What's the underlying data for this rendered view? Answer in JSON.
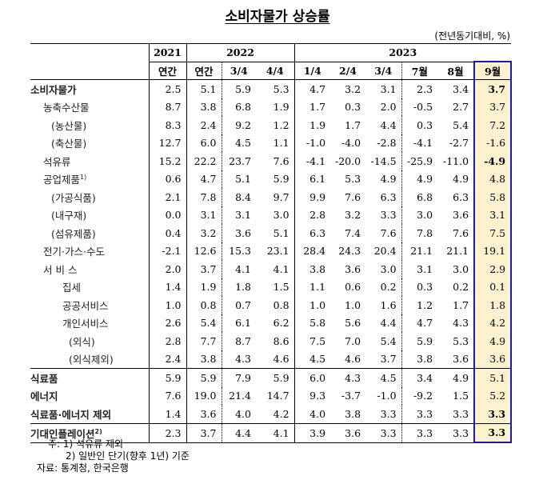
{
  "title": "소비자물가 상승률",
  "unit": "(전년동기대비, %)",
  "header": {
    "years": [
      {
        "label": "2021",
        "span": 1
      },
      {
        "label": "2022",
        "span": 3
      },
      {
        "label": "2023",
        "span": 6
      }
    ],
    "periods": [
      "연간",
      "연간",
      "3/4",
      "4/4",
      "1/4",
      "2/4",
      "3/4",
      "7월",
      "8월",
      "9월"
    ]
  },
  "rows": [
    {
      "label": "소비자물가",
      "indent": 0,
      "bold": true,
      "values": [
        "2.5",
        "5.1",
        "5.9",
        "5.3",
        "4.7",
        "3.2",
        "3.1",
        "2.3",
        "3.4",
        "3.7"
      ],
      "last_bold": true
    },
    {
      "label": "농축수산물",
      "indent": 1,
      "values": [
        "8.7",
        "3.8",
        "6.8",
        "1.9",
        "1.7",
        "0.3",
        "2.0",
        "-0.5",
        "2.7",
        "3.7"
      ]
    },
    {
      "label": "(농산물)",
      "indent": 2,
      "values": [
        "8.3",
        "2.4",
        "9.2",
        "1.2",
        "1.9",
        "1.7",
        "4.4",
        "0.3",
        "5.4",
        "7.2"
      ]
    },
    {
      "label": "(축산물)",
      "indent": 2,
      "values": [
        "12.7",
        "6.0",
        "4.5",
        "1.1",
        "-1.0",
        "-4.0",
        "-2.8",
        "-4.1",
        "-2.7",
        "-1.6"
      ]
    },
    {
      "label": "석유류",
      "indent": 1,
      "values": [
        "15.2",
        "22.2",
        "23.7",
        "7.6",
        "-4.1",
        "-20.0",
        "-14.5",
        "-25.9",
        "-11.0",
        "-4.9"
      ],
      "last_bold": true
    },
    {
      "label": "공업제품",
      "sup": "1)",
      "indent": 1,
      "values": [
        "0.6",
        "4.7",
        "5.1",
        "5.9",
        "6.1",
        "5.3",
        "4.9",
        "4.9",
        "4.9",
        "4.8"
      ]
    },
    {
      "label": "(가공식품)",
      "indent": 2,
      "values": [
        "2.1",
        "7.8",
        "8.4",
        "9.7",
        "9.9",
        "7.6",
        "6.3",
        "6.8",
        "6.3",
        "5.8"
      ]
    },
    {
      "label": "(내구재)",
      "indent": 2,
      "values": [
        "0.0",
        "3.1",
        "3.1",
        "3.0",
        "2.8",
        "3.2",
        "3.3",
        "3.0",
        "3.6",
        "3.1"
      ]
    },
    {
      "label": "(섬유제품)",
      "indent": 2,
      "values": [
        "0.4",
        "3.2",
        "3.6",
        "5.1",
        "6.3",
        "7.4",
        "7.6",
        "7.8",
        "7.6",
        "7.5"
      ]
    },
    {
      "label": "전기·가스·수도",
      "indent": 1,
      "values": [
        "-2.1",
        "12.6",
        "15.3",
        "23.1",
        "28.4",
        "24.3",
        "20.4",
        "21.1",
        "21.1",
        "19.1"
      ]
    },
    {
      "label": "서 비 스",
      "indent": 1,
      "values": [
        "2.0",
        "3.7",
        "4.1",
        "4.1",
        "3.8",
        "3.6",
        "3.0",
        "3.1",
        "3.0",
        "2.9"
      ]
    },
    {
      "label": "집세",
      "indent": 3,
      "values": [
        "1.4",
        "1.9",
        "1.8",
        "1.5",
        "1.1",
        "0.6",
        "0.2",
        "0.3",
        "0.2",
        "0.1"
      ]
    },
    {
      "label": "공공서비스",
      "indent": 3,
      "values": [
        "1.0",
        "0.8",
        "0.7",
        "0.8",
        "1.0",
        "1.0",
        "1.6",
        "1.2",
        "1.7",
        "1.8"
      ]
    },
    {
      "label": "개인서비스",
      "indent": 3,
      "values": [
        "2.6",
        "5.4",
        "6.1",
        "6.2",
        "5.8",
        "5.6",
        "4.4",
        "4.7",
        "4.3",
        "4.2"
      ]
    },
    {
      "label": "(외식)",
      "indent": 4,
      "values": [
        "2.8",
        "7.7",
        "8.7",
        "8.6",
        "7.5",
        "7.0",
        "5.4",
        "5.9",
        "5.3",
        "4.9"
      ]
    },
    {
      "label": "(외식제외)",
      "indent": 4,
      "values": [
        "2.4",
        "3.8",
        "4.3",
        "4.6",
        "4.5",
        "4.6",
        "3.7",
        "3.8",
        "3.6",
        "3.6"
      ]
    },
    {
      "label": "식료품",
      "indent": 0,
      "bold": true,
      "sep": "top",
      "values": [
        "5.9",
        "5.9",
        "7.9",
        "5.9",
        "6.0",
        "4.3",
        "4.5",
        "3.4",
        "4.9",
        "5.1"
      ]
    },
    {
      "label": "에너지",
      "indent": 0,
      "bold": true,
      "values": [
        "7.6",
        "19.0",
        "21.4",
        "14.7",
        "9.3",
        "-3.7",
        "-1.0",
        "-9.2",
        "1.5",
        "5.2"
      ]
    },
    {
      "label": "식료품·에너지 제외",
      "indent": 0,
      "bold": true,
      "values": [
        "1.4",
        "3.6",
        "4.0",
        "4.2",
        "4.0",
        "3.8",
        "3.3",
        "3.3",
        "3.3",
        "3.3"
      ],
      "last_bold": true
    },
    {
      "label": "기대인플레이션",
      "sup": "2)",
      "indent": 0,
      "bold": true,
      "sep": "top2",
      "last": true,
      "values": [
        "2.3",
        "3.7",
        "4.4",
        "4.1",
        "3.9",
        "3.6",
        "3.3",
        "3.3",
        "3.3",
        "3.3"
      ],
      "last_bold": true
    }
  ],
  "notes": {
    "prefix": "주:",
    "items": [
      "1) 석유류 제외",
      "2) 일반인 단기(향후 1년) 기준"
    ],
    "source": "자료: 통계청, 한국은행"
  },
  "colors": {
    "highlight_bg": "#fdf2cf",
    "highlight_border": "#1a1aa6"
  }
}
